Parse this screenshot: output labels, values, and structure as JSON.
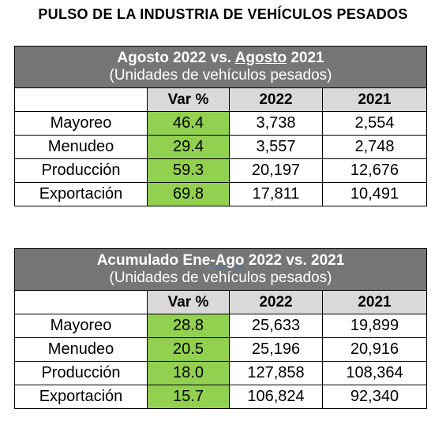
{
  "page_title": "PULSO DE LA INDUSTRIA DE VEHÍCULOS PESADOS",
  "tables": [
    {
      "title_pre": "Agosto 2022 vs. ",
      "title_mark": "Agosto",
      "title_post": " 2021",
      "subtitle": "(Unidades de vehículos pesados)",
      "col_headers": [
        "",
        "Var %",
        "2022",
        "2021"
      ],
      "rows": [
        {
          "label": "Mayoreo",
          "var": "46.4",
          "y2022": "3,738",
          "y2021": "2,554"
        },
        {
          "label": "Menudeo",
          "var": "29.4",
          "y2022": "3,557",
          "y2021": "2,748"
        },
        {
          "label": "Producción",
          "var": "59.3",
          "y2022": "20,197",
          "y2021": "12,676"
        },
        {
          "label": "Exportación",
          "var": "69.8",
          "y2022": "17,811",
          "y2021": "10,491"
        }
      ]
    },
    {
      "title_pre": "Acumulado Ene-",
      "title_mark": "Ago",
      "title_post": " 2022 vs. 2021",
      "subtitle": "(Unidades de vehículos pesados)",
      "col_headers": [
        "",
        "Var %",
        "2022",
        "2021"
      ],
      "rows": [
        {
          "label": "Mayoreo",
          "var": "28.8",
          "y2022": "25,633",
          "y2021": "19,899"
        },
        {
          "label": "Menudeo",
          "var": "20.5",
          "y2022": "25,196",
          "y2021": "20,916"
        },
        {
          "label": "Producción",
          "var": "18.0",
          "y2022": "127,858",
          "y2021": "108,364"
        },
        {
          "label": "Exportación",
          "var": "15.7",
          "y2022": "106,824",
          "y2021": "92,340"
        }
      ]
    }
  ],
  "colors": {
    "header_bg": "#767676",
    "colhead_bg": "#d9d9d9",
    "var_bg": "#92d050"
  }
}
